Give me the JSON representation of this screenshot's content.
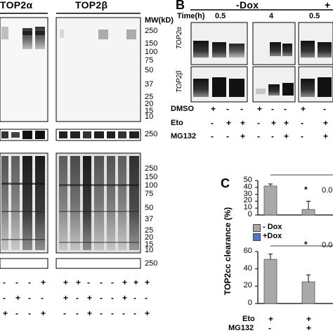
{
  "panelA": {
    "header_left": "TOP2α",
    "header_right": "TOP2β",
    "mw_title": "MW(kD)",
    "mw_markers_top": [
      "250",
      "150",
      "100",
      "75",
      "50",
      "37",
      "25",
      "20",
      "15",
      "10"
    ],
    "mw_marker_mid": "250",
    "mw_markers_bottom": [
      "250",
      "150",
      "100",
      "75",
      "50",
      "37",
      "25",
      "20",
      "15",
      "10"
    ],
    "mw_marker_lower": "250",
    "sign_rows": [
      [
        "-",
        "-",
        "-",
        "+",
        "+",
        "+",
        "-",
        "-",
        "-",
        "+",
        "+",
        "+"
      ],
      [
        "-",
        "+",
        "-",
        "-",
        "+",
        "-",
        "+",
        "-",
        "-",
        "+",
        "-",
        "-"
      ],
      [
        "+",
        "-",
        "-",
        "+",
        "-",
        "-",
        "+",
        "-",
        "-",
        "-",
        "-",
        "+"
      ]
    ]
  },
  "panelB": {
    "letter": "B",
    "time_label": "Time(h)",
    "condition_label": "-Dox",
    "condition_label_right": "+",
    "time_values": [
      "0.5",
      "4",
      "0.5"
    ],
    "blot_labels": [
      "TOP2α",
      "TOP2β"
    ],
    "row_labels": [
      "DMSO",
      "Eto",
      "MG132"
    ],
    "signs": [
      [
        "+",
        "-",
        "-",
        "+",
        "-",
        "-",
        "+",
        "-"
      ],
      [
        "-",
        "+",
        "+",
        "-",
        "+",
        "+",
        "-",
        "+"
      ],
      [
        "-",
        "-",
        "+",
        "-",
        "-",
        "+",
        "-",
        "+"
      ]
    ]
  },
  "panelC": {
    "letter": "C",
    "ylabel": "TOP2cc clearance (%)",
    "legend": [
      {
        "label": "- Dox",
        "color": "#a9a9a9"
      },
      {
        "label": "+Dox",
        "color": "#4f74d9"
      }
    ],
    "top_chart": {
      "yticks": [
        "0",
        "10",
        "20",
        "30",
        "40",
        "50"
      ],
      "values": [
        42,
        8
      ],
      "errors": [
        3,
        12
      ],
      "significance": "*",
      "pvalue": "0.0"
    },
    "bottom_chart": {
      "yticks": [
        "0",
        "20",
        "40",
        "60"
      ],
      "values": [
        51,
        25
      ],
      "errors": [
        6,
        8
      ],
      "significance": "*",
      "pvalue": "0.0"
    },
    "row_labels": [
      "Eto",
      "MG132"
    ],
    "signs": [
      [
        "+",
        "+"
      ],
      [
        "-",
        "+"
      ]
    ]
  },
  "chart_data": [
    {
      "type": "bar",
      "ylabel": "TOP2cc clearance (%)",
      "series": [
        {
          "name": "- Dox",
          "values": [
            42,
            8
          ],
          "errors": [
            3,
            12
          ]
        }
      ],
      "ylim": [
        0,
        50
      ]
    },
    {
      "type": "bar",
      "ylabel": "TOP2cc clearance (%)",
      "series": [
        {
          "name": "- Dox",
          "values": [
            51,
            25
          ],
          "errors": [
            6,
            8
          ]
        }
      ],
      "ylim": [
        0,
        60
      ]
    }
  ]
}
